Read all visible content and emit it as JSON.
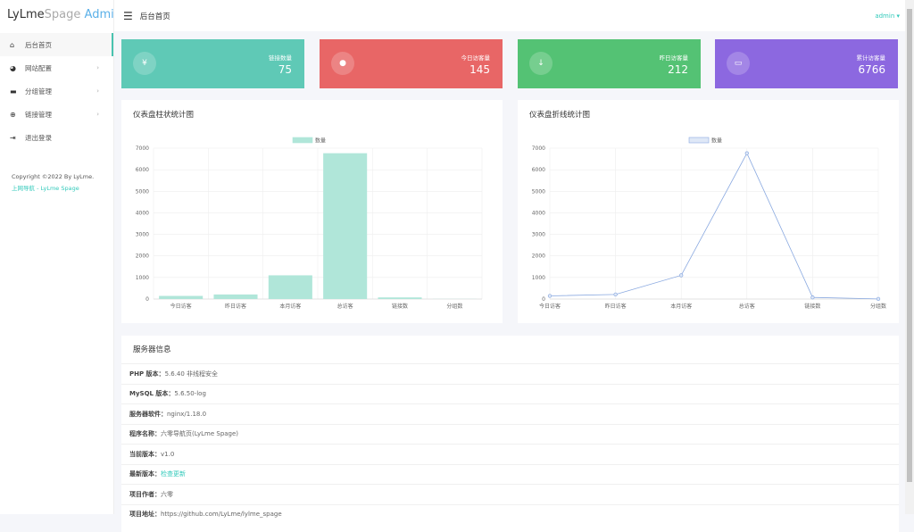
{
  "logo": {
    "part1": "LyLme",
    "part2": "Spage",
    "part3": "Admin"
  },
  "header": {
    "title": "后台首页",
    "user": "admin ▾"
  },
  "sidebar": {
    "items": [
      {
        "label": "后台首页",
        "icon": "home-icon",
        "glyph": "⌂"
      },
      {
        "label": "网站配置",
        "icon": "palette-icon",
        "glyph": "◕",
        "chev": "›"
      },
      {
        "label": "分组管理",
        "icon": "folder-icon",
        "glyph": "▬",
        "chev": "›"
      },
      {
        "label": "链接管理",
        "icon": "globe-icon",
        "glyph": "⊕",
        "chev": "›"
      },
      {
        "label": "退出登录",
        "icon": "logout-icon",
        "glyph": "⇥"
      }
    ],
    "copyright": "Copyright ©2022 By LyLme.",
    "link": "上网导航 - LyLme Spage"
  },
  "cards": [
    {
      "label": "链接数量",
      "value": "75",
      "icon": "yen-icon",
      "glyph": "¥",
      "color": "#5fc9b6"
    },
    {
      "label": "今日访客量",
      "value": "145",
      "icon": "user-icon",
      "glyph": "●",
      "color": "#e86666"
    },
    {
      "label": "昨日访客量",
      "value": "212",
      "icon": "download-icon",
      "glyph": "↓",
      "color": "#54c274"
    },
    {
      "label": "累计访客量",
      "value": "6766",
      "icon": "message-icon",
      "glyph": "▭",
      "color": "#8c68e0"
    }
  ],
  "charts": {
    "bar_title": "仪表盘柱状统计图",
    "line_title": "仪表盘折线统计图"
  },
  "chart_data": [
    {
      "type": "bar",
      "legend": "数量",
      "categories": [
        "今日访客",
        "昨日访客",
        "本月访客",
        "总访客",
        "链接数",
        "分组数"
      ],
      "values": [
        145,
        212,
        1100,
        6766,
        75,
        5
      ],
      "ylim": [
        0,
        7000
      ],
      "yticks": [
        0,
        1000,
        2000,
        3000,
        4000,
        5000,
        6000,
        7000
      ],
      "grid": true,
      "legend_placement": "top",
      "color": "#b0e6d9"
    },
    {
      "type": "line",
      "legend": "数量",
      "categories": [
        "今日访客",
        "昨日访客",
        "本月访客",
        "总访客",
        "链接数",
        "分组数"
      ],
      "values": [
        145,
        212,
        1100,
        6766,
        75,
        5
      ],
      "ylim": [
        0,
        7000
      ],
      "yticks": [
        0,
        1000,
        2000,
        3000,
        4000,
        5000,
        6000,
        7000
      ],
      "grid": true,
      "legend_placement": "top",
      "color": "#8aa9e0"
    }
  ],
  "server": {
    "title": "服务器信息",
    "rows": [
      {
        "k": "PHP 版本：",
        "v": "5.6.40 非线程安全"
      },
      {
        "k": "MySQL 版本：",
        "v": "5.6.50-log"
      },
      {
        "k": "服务器软件：",
        "v": "nginx/1.18.0"
      },
      {
        "k": "程序名称：",
        "v": "六零导航页(LyLme Spage)"
      },
      {
        "k": "当前版本：",
        "v": "v1.0"
      },
      {
        "k": "最新版本：",
        "v": "检查更新",
        "link": true
      },
      {
        "k": "项目作者：",
        "v": "六零"
      },
      {
        "k": "项目地址：",
        "v": "https://github.com/LyLme/lylme_spage"
      }
    ]
  }
}
